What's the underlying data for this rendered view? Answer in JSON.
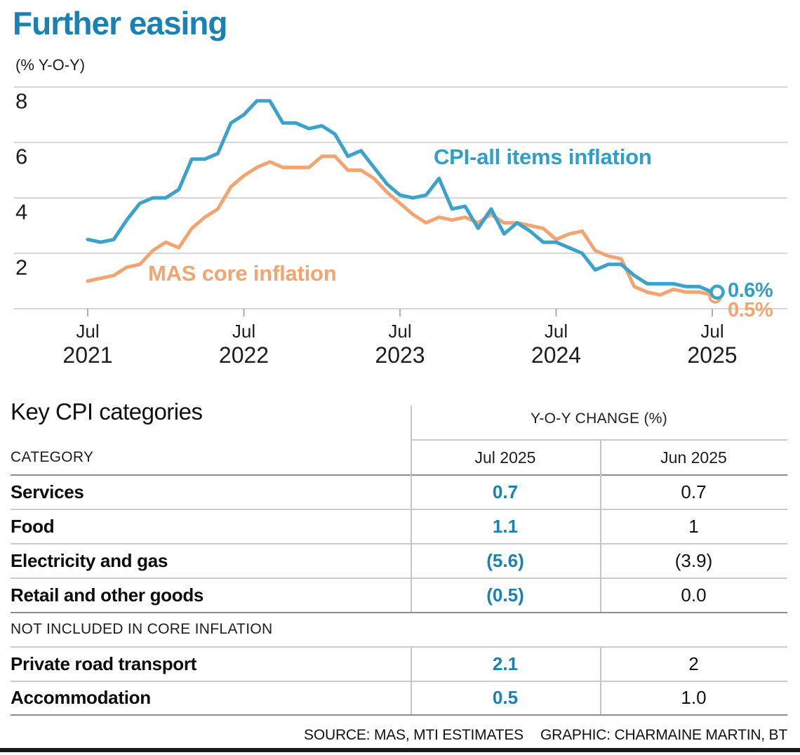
{
  "title": "Further easing",
  "chart": {
    "unit_label": "(% Y-O-Y)",
    "annotations": {
      "cpi": "CPI-all items inflation",
      "core": "MAS core inflation"
    },
    "end_labels": {
      "cpi": "0.6%",
      "core": "0.5%"
    }
  },
  "chart_data": {
    "type": "line",
    "title": "Further easing",
    "ylabel": "(% Y-O-Y)",
    "x_start": "Jul 2021",
    "x_end": "Jul 2025",
    "x_interval": "monthly",
    "ylim": [
      0,
      8
    ],
    "yticks": [
      8,
      6,
      4,
      2
    ],
    "grid": true,
    "legend_position": "inline-annotations",
    "xticks": [
      {
        "month": "Jul",
        "year": "2021",
        "index": 0
      },
      {
        "month": "Jul",
        "year": "2022",
        "index": 12
      },
      {
        "month": "Jul",
        "year": "2023",
        "index": 24
      },
      {
        "month": "Jul",
        "year": "2024",
        "index": 36
      },
      {
        "month": "Jul",
        "year": "2025",
        "index": 48
      }
    ],
    "series": [
      {
        "name": "CPI-all items inflation",
        "color": "#3AA2CB",
        "end_label": "0.6%",
        "values": [
          2.5,
          2.4,
          2.5,
          3.2,
          3.8,
          4.0,
          4.0,
          4.3,
          5.4,
          5.4,
          5.6,
          6.7,
          7.0,
          7.5,
          7.5,
          6.7,
          6.7,
          6.5,
          6.6,
          6.3,
          5.5,
          5.7,
          5.1,
          4.5,
          4.1,
          4.0,
          4.1,
          4.7,
          3.6,
          3.7,
          2.9,
          3.6,
          2.7,
          3.1,
          2.8,
          2.4,
          2.4,
          2.2,
          2.0,
          1.4,
          1.6,
          1.6,
          1.2,
          0.9,
          0.9,
          0.9,
          0.8,
          0.8,
          0.6
        ]
      },
      {
        "name": "MAS core inflation",
        "color": "#F2A471",
        "end_label": "0.5%",
        "values": [
          1.0,
          1.1,
          1.2,
          1.5,
          1.6,
          2.1,
          2.4,
          2.2,
          2.9,
          3.3,
          3.6,
          4.4,
          4.8,
          5.1,
          5.3,
          5.1,
          5.1,
          5.1,
          5.5,
          5.5,
          5.0,
          5.0,
          4.7,
          4.2,
          3.8,
          3.4,
          3.1,
          3.3,
          3.2,
          3.3,
          3.1,
          3.4,
          3.1,
          3.1,
          3.0,
          2.9,
          2.5,
          2.7,
          2.8,
          2.1,
          1.9,
          1.8,
          0.8,
          0.6,
          0.5,
          0.7,
          0.6,
          0.6,
          0.5
        ]
      }
    ]
  },
  "table": {
    "section_title": "Key CPI categories",
    "group_header": "Y-O-Y CHANGE (%)",
    "col_headers": {
      "category": "CATEGORY",
      "jul": "Jul 2025",
      "jun": "Jun 2025"
    },
    "rows": [
      {
        "name": "Services",
        "jul": "0.7",
        "jun": "0.7"
      },
      {
        "name": "Food",
        "jul": "1.1",
        "jun": "1"
      },
      {
        "name": "Electricity and gas",
        "jul": "(5.6)",
        "jun": "(3.9)"
      },
      {
        "name": "Retail and other goods",
        "jul": "(0.5)",
        "jun": "0.0"
      }
    ],
    "band_label": "NOT INCLUDED IN CORE INFLATION",
    "extra_rows": [
      {
        "name": "Private road transport",
        "jul": "2.1",
        "jun": "2"
      },
      {
        "name": "Accommodation",
        "jul": "0.5",
        "jun": "1.0"
      }
    ]
  },
  "source": {
    "source_label": "SOURCE: MAS, MTI ESTIMATES",
    "credit_label": "GRAPHIC: CHARMAINE MARTIN, BT"
  },
  "colors": {
    "title_blue": "#1A81B2",
    "line_blue": "#3AA2CB",
    "line_orange": "#F2A471",
    "table_value_blue": "#1A81B2"
  }
}
